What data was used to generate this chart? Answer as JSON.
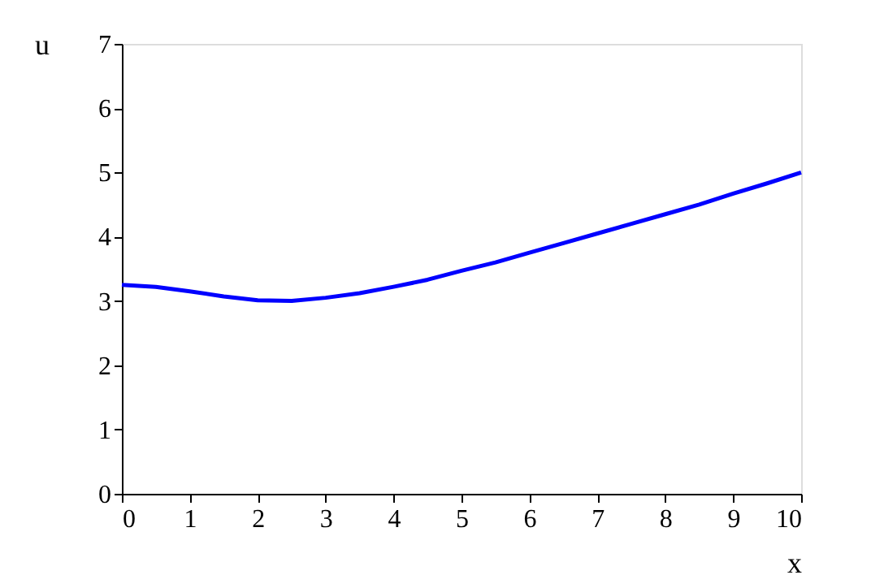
{
  "chart_data": {
    "type": "line",
    "xlabel": "x",
    "ylabel": "u",
    "x": [
      0,
      0.5,
      1,
      1.5,
      2,
      2.5,
      3,
      3.5,
      4,
      4.5,
      5,
      5.5,
      6,
      6.5,
      7,
      7.5,
      8,
      8.5,
      9,
      9.5,
      10
    ],
    "series": [
      {
        "color": "#0000ff",
        "values": [
          3.25,
          3.22,
          3.15,
          3.07,
          3.01,
          3.0,
          3.05,
          3.12,
          3.22,
          3.33,
          3.47,
          3.6,
          3.75,
          3.9,
          4.05,
          4.2,
          4.35,
          4.5,
          4.67,
          4.83,
          5.0
        ]
      }
    ],
    "xlim": [
      0,
      10
    ],
    "xticks": [
      0,
      1,
      2,
      3,
      4,
      5,
      6,
      7,
      8,
      9,
      10
    ],
    "ylim": [
      0,
      7
    ],
    "yticks": [
      0,
      1,
      2,
      3,
      4,
      5,
      6,
      7
    ],
    "grid": false,
    "marker": "none",
    "line_style": "solid"
  }
}
